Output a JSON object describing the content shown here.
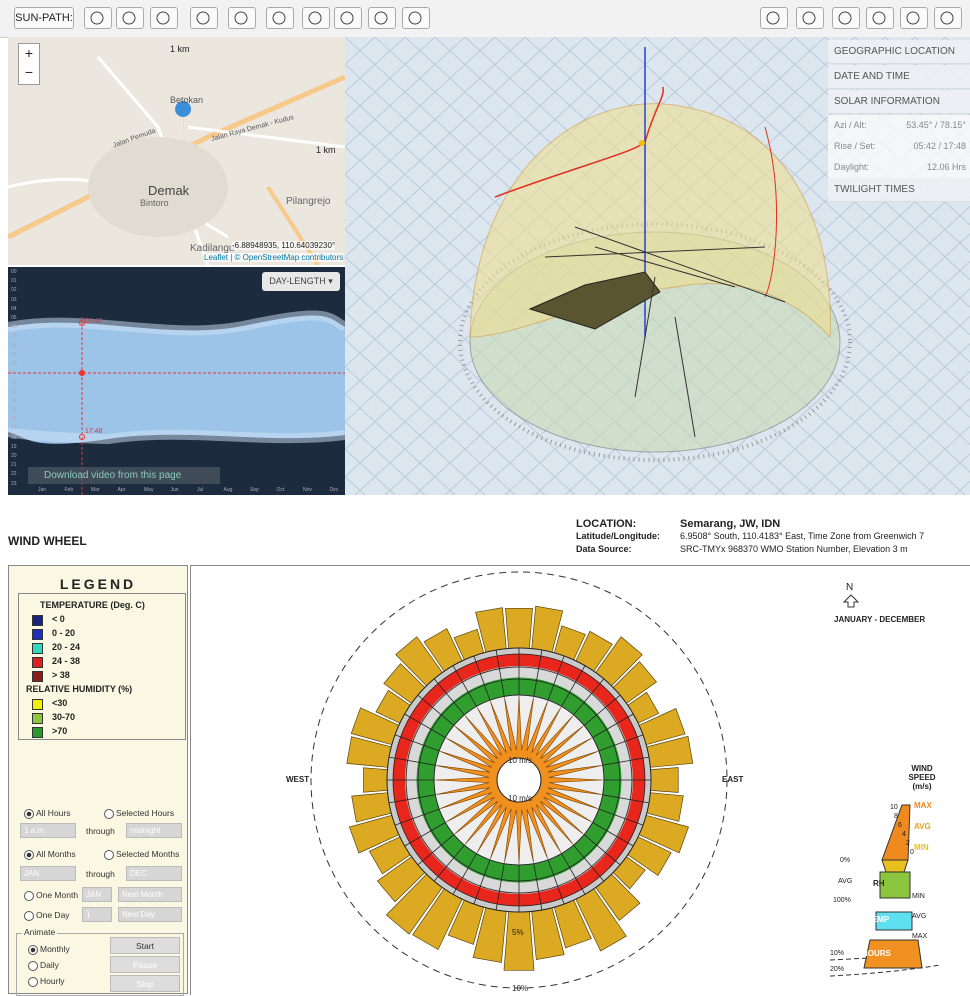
{
  "toolbar": {
    "label": "SUN-PATH:"
  },
  "map": {
    "zoom_in": "+",
    "zoom_out": "−",
    "scale_top": "1 km",
    "scale_right": "1 km",
    "places": [
      "Betokan",
      "Jalan Raya Demak - Kudus",
      "Jalan Pemuda",
      "Demak",
      "Bintoro",
      "Pilangrejo",
      "Kadilangu"
    ],
    "coordinates": "-6.88948935, 110.64039230°",
    "attribution": "Leaflet | © OpenStreetMap contributors"
  },
  "day_length": {
    "button": "DAY-LENGTH ▾",
    "sunrise": "05:42",
    "sunset": "17:48",
    "hours": [
      "00",
      "01",
      "02",
      "03",
      "04",
      "05",
      "06",
      "07",
      "08",
      "09",
      "10",
      "11",
      "12",
      "13",
      "14",
      "15",
      "16",
      "17",
      "18",
      "19",
      "20",
      "21",
      "22",
      "23"
    ],
    "months": [
      "Jan",
      "Feb",
      "Mar",
      "Apr",
      "May",
      "Jun",
      "Jul",
      "Aug",
      "Sep",
      "Oct",
      "Nov",
      "Dec"
    ],
    "video_link": "Download video from this page"
  },
  "panel": {
    "sections": [
      "GEOGRAPHIC LOCATION",
      "DATE AND TIME",
      "SOLAR INFORMATION"
    ],
    "rows": [
      [
        "Azi / Alt:",
        "53.45° / 78.15°"
      ],
      [
        "Rise / Set:",
        "05:42 / 17:48"
      ],
      [
        "Daylight:",
        "12.06 Hrs"
      ]
    ],
    "footer": "TWILIGHT TIMES"
  },
  "wind_wheel": {
    "title": "WIND WHEEL",
    "info": [
      [
        "LOCATION:",
        "Semarang, JW, IDN"
      ],
      [
        "Latitude/Longitude:",
        "6.9508° South, 110.4183° East, Time Zone from Greenwich 7"
      ],
      [
        "Data Source:",
        "SRC-TMYx    968370 WMO Station Number, Elevation 3 m"
      ]
    ],
    "legend": {
      "title": "LEGEND",
      "temperature_title": "TEMPERATURE (Deg. C)",
      "temperature": [
        "< 0",
        "0  -  20",
        "20  -  24",
        "24  -  38",
        "> 38"
      ],
      "humidity_title": "RELATIVE HUMIDITY (%)",
      "humidity": [
        "<30",
        "30-70",
        ">70"
      ]
    },
    "controls": {
      "hours": {
        "all": "All Hours",
        "selected": "Selected Hours",
        "from": "1 a.m.",
        "through": "through",
        "to": "midnight"
      },
      "months": {
        "all": "All Months",
        "selected": "Selected Months",
        "from": "JAN",
        "through": "through",
        "to": "DEC"
      },
      "one_month": {
        "label": "One Month",
        "month": "JAN",
        "button": "Next Month"
      },
      "one_day": {
        "label": "One Day",
        "day": "1",
        "button": "Next Day"
      },
      "animate": {
        "title": "Animate",
        "options": [
          "Monthly",
          "Daily",
          "Hourly"
        ],
        "buttons": [
          "Start",
          "Pause",
          "Stop"
        ]
      }
    },
    "wheel": {
      "north": "N",
      "period": "JANUARY - DECEMBER",
      "west": "WEST",
      "east": "EAST",
      "speed_rings": [
        "10 m/s",
        "10 m/s"
      ],
      "percent_rings": [
        "5%",
        "10%"
      ]
    },
    "key": {
      "title": "WIND SPEED (m/s)",
      "speeds": [
        10,
        8,
        6,
        4,
        2,
        0
      ],
      "speed_marks": [
        "MAX",
        "AVG",
        "MIN"
      ],
      "rh": [
        "0%",
        "AVG",
        "100%"
      ],
      "rh_label": "RH",
      "temp_label": "TEMP",
      "temp_marks": [
        "MIN",
        "AVG",
        "MAX"
      ],
      "hours_label": "HOURS",
      "hours_marks": [
        "10%",
        "20%"
      ]
    }
  }
}
